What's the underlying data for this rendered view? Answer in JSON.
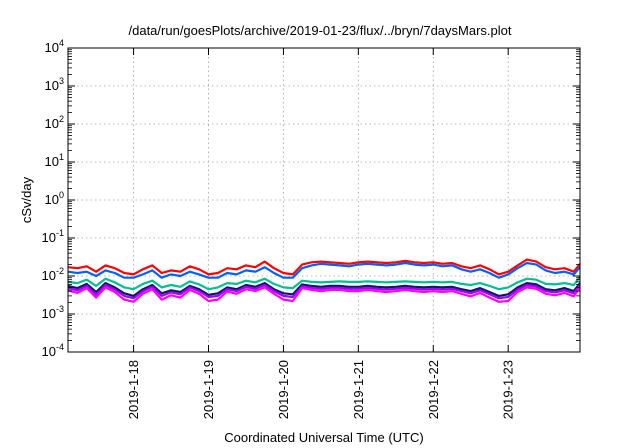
{
  "chart_data": {
    "type": "line",
    "title": "/data/run/goesPlots/archive/2019-01-23/flux/../bryn/7daysMars.plot",
    "xlabel": "Coordinated Universal Time (UTC)",
    "ylabel": "cSv/day",
    "yscale": "log",
    "ylim": [
      0.0001,
      10000
    ],
    "xlim": [
      "2019-01-17T03:00",
      "2019-01-23T23:00"
    ],
    "grid": true,
    "legend": "none",
    "y_ticks": [
      {
        "base": "10",
        "exp": "4"
      },
      {
        "base": "10",
        "exp": "3"
      },
      {
        "base": "10",
        "exp": "2"
      },
      {
        "base": "10",
        "exp": "1"
      },
      {
        "base": "10",
        "exp": "0"
      },
      {
        "base": "10",
        "exp": "-1"
      },
      {
        "base": "10",
        "exp": "-2"
      },
      {
        "base": "10",
        "exp": "-3"
      },
      {
        "base": "10",
        "exp": "-4"
      }
    ],
    "x_ticks": [
      "2019-1-18",
      "2019-1-19",
      "2019-1-20",
      "2019-1-21",
      "2019-1-22",
      "2019-1-23"
    ],
    "x": [
      "2019-01-17T03:00",
      "2019-01-17T06:00",
      "2019-01-17T09:00",
      "2019-01-17T12:00",
      "2019-01-17T15:00",
      "2019-01-17T18:00",
      "2019-01-17T21:00",
      "2019-01-18T00:00",
      "2019-01-18T03:00",
      "2019-01-18T06:00",
      "2019-01-18T09:00",
      "2019-01-18T12:00",
      "2019-01-18T15:00",
      "2019-01-18T18:00",
      "2019-01-18T21:00",
      "2019-01-19T00:00",
      "2019-01-19T03:00",
      "2019-01-19T06:00",
      "2019-01-19T09:00",
      "2019-01-19T12:00",
      "2019-01-19T15:00",
      "2019-01-19T18:00",
      "2019-01-19T21:00",
      "2019-01-20T00:00",
      "2019-01-20T03:00",
      "2019-01-20T06:00",
      "2019-01-20T09:00",
      "2019-01-20T12:00",
      "2019-01-20T15:00",
      "2019-01-20T18:00",
      "2019-01-20T21:00",
      "2019-01-21T00:00",
      "2019-01-21T03:00",
      "2019-01-21T06:00",
      "2019-01-21T09:00",
      "2019-01-21T12:00",
      "2019-01-21T15:00",
      "2019-01-21T18:00",
      "2019-01-21T21:00",
      "2019-01-22T00:00",
      "2019-01-22T03:00",
      "2019-01-22T06:00",
      "2019-01-22T09:00",
      "2019-01-22T12:00",
      "2019-01-22T15:00",
      "2019-01-22T18:00",
      "2019-01-22T21:00",
      "2019-01-23T00:00",
      "2019-01-23T03:00",
      "2019-01-23T06:00",
      "2019-01-23T09:00",
      "2019-01-23T12:00",
      "2019-01-23T15:00",
      "2019-01-23T18:00",
      "2019-01-23T21:00",
      "2019-01-23T23:00"
    ],
    "series": [
      {
        "color": "#ff0000",
        "values": [
          0.017,
          0.016,
          0.018,
          0.013,
          0.019,
          0.016,
          0.012,
          0.011,
          0.015,
          0.019,
          0.012,
          0.014,
          0.013,
          0.018,
          0.015,
          0.011,
          0.012,
          0.016,
          0.015,
          0.019,
          0.017,
          0.024,
          0.016,
          0.012,
          0.011,
          0.02,
          0.023,
          0.024,
          0.023,
          0.022,
          0.021,
          0.023,
          0.024,
          0.023,
          0.022,
          0.023,
          0.025,
          0.023,
          0.022,
          0.023,
          0.021,
          0.022,
          0.018,
          0.016,
          0.019,
          0.015,
          0.011,
          0.013,
          0.019,
          0.027,
          0.024,
          0.017,
          0.015,
          0.016,
          0.013,
          0.021
        ]
      },
      {
        "color": "#0060ff",
        "values": [
          0.013,
          0.012,
          0.013,
          0.01,
          0.014,
          0.012,
          0.009,
          0.009,
          0.011,
          0.014,
          0.009,
          0.011,
          0.01,
          0.013,
          0.011,
          0.009,
          0.009,
          0.012,
          0.011,
          0.014,
          0.013,
          0.017,
          0.012,
          0.009,
          0.009,
          0.016,
          0.019,
          0.021,
          0.02,
          0.019,
          0.018,
          0.02,
          0.021,
          0.02,
          0.019,
          0.02,
          0.022,
          0.02,
          0.019,
          0.02,
          0.018,
          0.019,
          0.015,
          0.013,
          0.015,
          0.012,
          0.009,
          0.011,
          0.016,
          0.022,
          0.02,
          0.014,
          0.012,
          0.013,
          0.011,
          0.017
        ]
      },
      {
        "color": "#00c090",
        "values": [
          0.007,
          0.0065,
          0.008,
          0.0055,
          0.0085,
          0.0068,
          0.005,
          0.0045,
          0.0062,
          0.0075,
          0.005,
          0.0058,
          0.0052,
          0.0072,
          0.006,
          0.0045,
          0.005,
          0.0065,
          0.0062,
          0.0075,
          0.0068,
          0.0085,
          0.0062,
          0.005,
          0.0048,
          0.0075,
          0.007,
          0.0068,
          0.007,
          0.0072,
          0.007,
          0.007,
          0.0072,
          0.007,
          0.0068,
          0.007,
          0.0072,
          0.007,
          0.0068,
          0.007,
          0.0068,
          0.007,
          0.0062,
          0.0058,
          0.0065,
          0.0055,
          0.0045,
          0.005,
          0.0068,
          0.0085,
          0.008,
          0.0062,
          0.006,
          0.0065,
          0.0058,
          0.0095
        ]
      },
      {
        "color": "#0a1a60",
        "values": [
          0.0055,
          0.0048,
          0.0062,
          0.0038,
          0.0065,
          0.005,
          0.0035,
          0.003,
          0.0045,
          0.0058,
          0.0035,
          0.0042,
          0.0038,
          0.0055,
          0.0045,
          0.0032,
          0.0035,
          0.005,
          0.0045,
          0.0058,
          0.0052,
          0.0065,
          0.0045,
          0.0035,
          0.0033,
          0.006,
          0.0055,
          0.0052,
          0.0055,
          0.0055,
          0.0052,
          0.0052,
          0.0055,
          0.0052,
          0.005,
          0.0052,
          0.0055,
          0.0052,
          0.005,
          0.0052,
          0.005,
          0.0052,
          0.0045,
          0.004,
          0.0048,
          0.0038,
          0.003,
          0.0033,
          0.005,
          0.0065,
          0.006,
          0.0045,
          0.0042,
          0.0048,
          0.004,
          0.0065
        ]
      },
      {
        "color": "#a000ff",
        "values": [
          0.0048,
          0.0042,
          0.0055,
          0.0032,
          0.0058,
          0.0044,
          0.003,
          0.0026,
          0.004,
          0.0052,
          0.003,
          0.0037,
          0.0033,
          0.005,
          0.004,
          0.0028,
          0.003,
          0.0045,
          0.004,
          0.0052,
          0.0046,
          0.0058,
          0.004,
          0.003,
          0.0028,
          0.0054,
          0.0049,
          0.0046,
          0.0049,
          0.0049,
          0.0046,
          0.0046,
          0.0049,
          0.0046,
          0.0044,
          0.0046,
          0.0049,
          0.0046,
          0.0044,
          0.0046,
          0.0044,
          0.0046,
          0.004,
          0.0035,
          0.0042,
          0.0033,
          0.0026,
          0.0028,
          0.0044,
          0.0058,
          0.0053,
          0.004,
          0.0037,
          0.0042,
          0.0035,
          0.0058
        ]
      },
      {
        "color": "#ff00ff",
        "values": [
          0.0042,
          0.0036,
          0.0048,
          0.0027,
          0.005,
          0.0038,
          0.0024,
          0.0021,
          0.0034,
          0.0045,
          0.0024,
          0.0031,
          0.0027,
          0.0043,
          0.0034,
          0.0022,
          0.0024,
          0.0039,
          0.0034,
          0.0045,
          0.004,
          0.005,
          0.0034,
          0.0024,
          0.0022,
          0.0048,
          0.0043,
          0.004,
          0.0043,
          0.0043,
          0.004,
          0.004,
          0.0043,
          0.004,
          0.0038,
          0.004,
          0.0043,
          0.004,
          0.0038,
          0.004,
          0.0038,
          0.004,
          0.0034,
          0.0029,
          0.0036,
          0.0027,
          0.0021,
          0.0022,
          0.0038,
          0.005,
          0.0046,
          0.0034,
          0.0031,
          0.0036,
          0.0029,
          0.005
        ]
      }
    ]
  }
}
